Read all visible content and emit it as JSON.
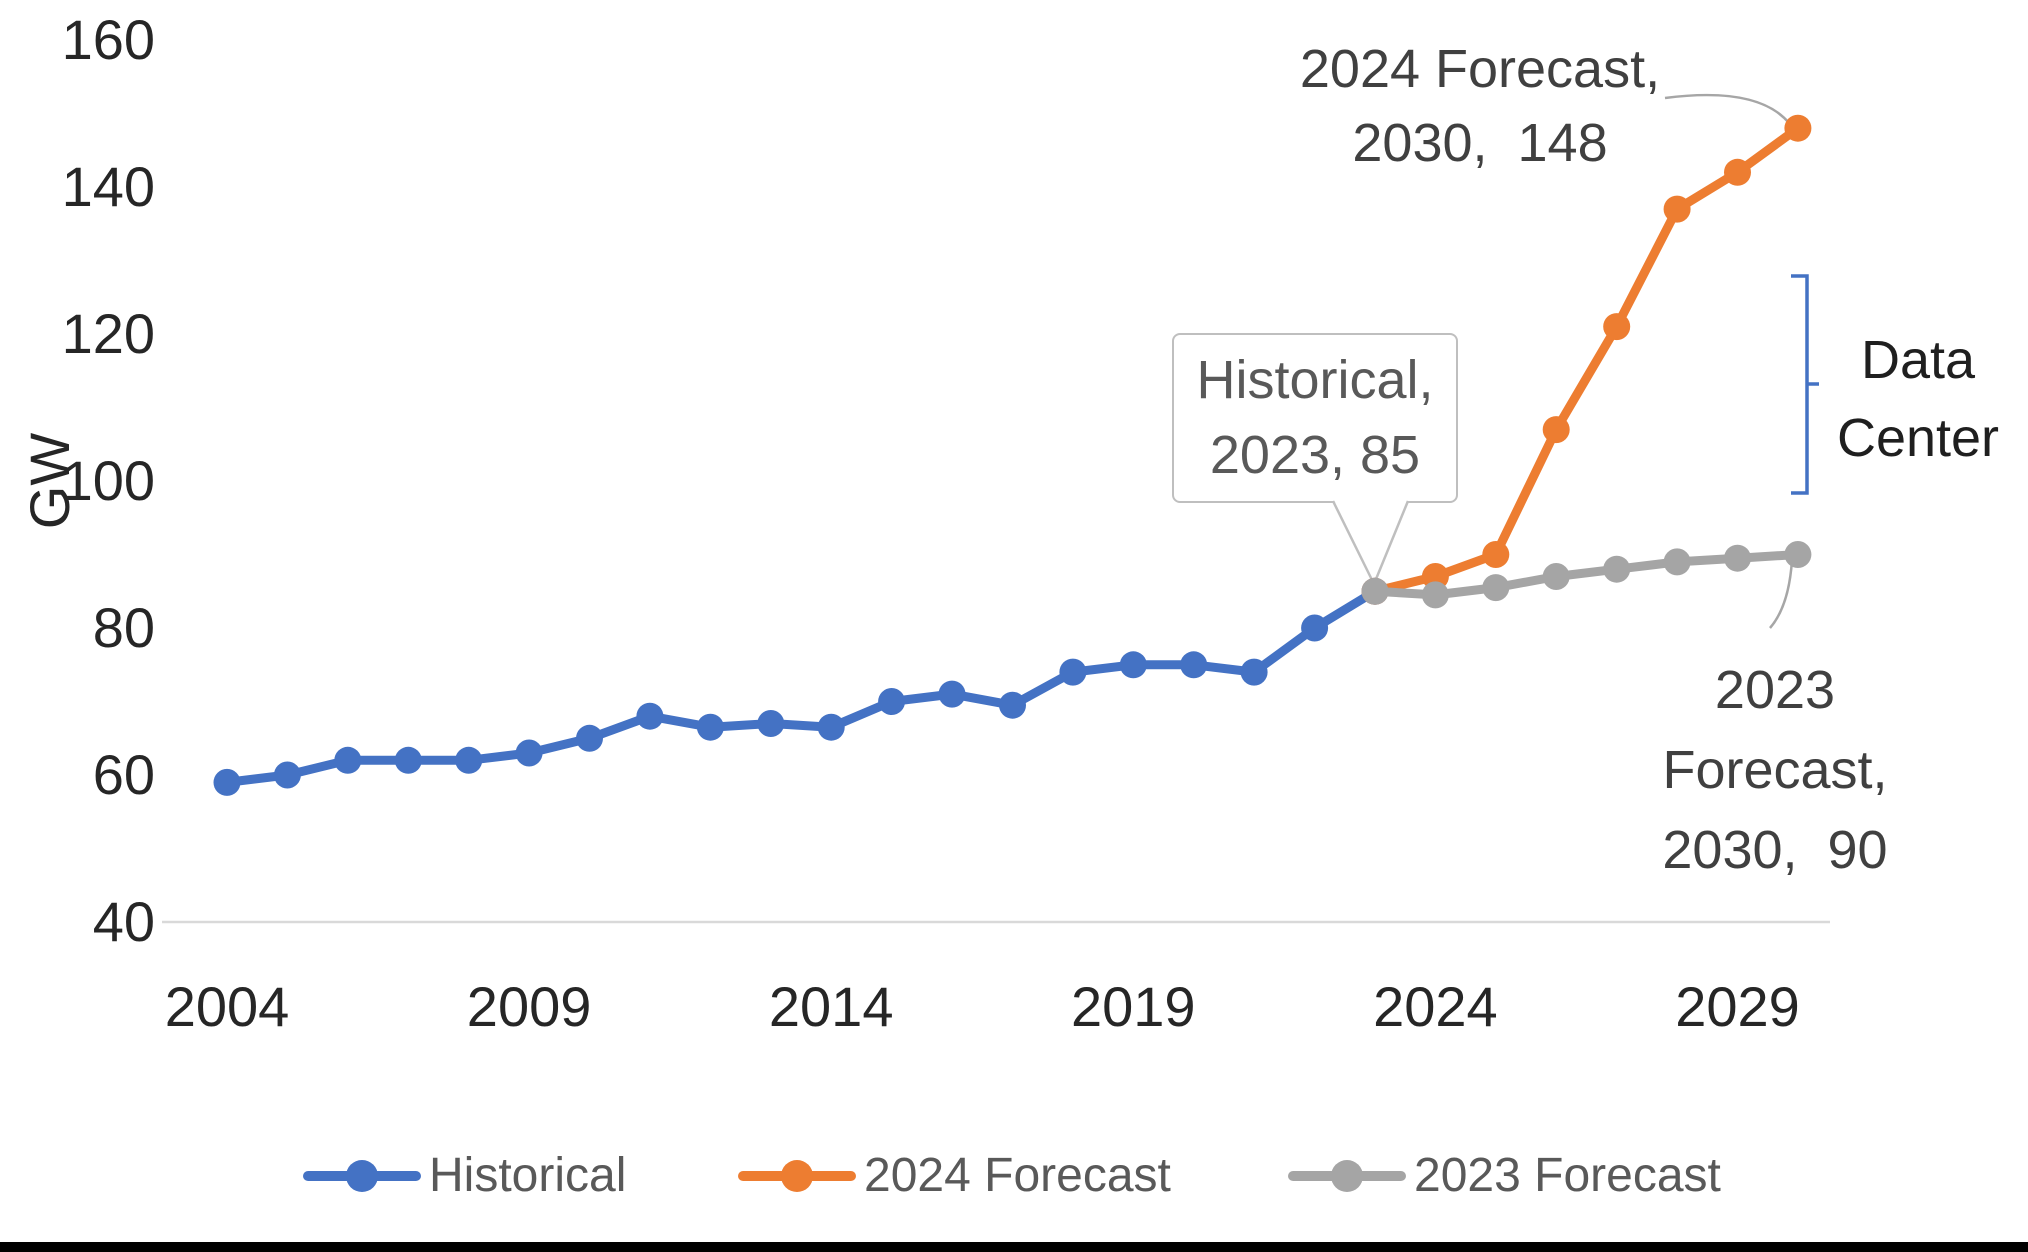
{
  "chart_data": {
    "type": "line",
    "title": "",
    "xlabel": "",
    "ylabel": "GW",
    "ylim": [
      40,
      160
    ],
    "xlim": [
      2004,
      2030
    ],
    "yticks": [
      160,
      140,
      120,
      100,
      80,
      60,
      40
    ],
    "xticks": [
      2004,
      2009,
      2014,
      2019,
      2024,
      2029
    ],
    "grid": "baseline-only",
    "legend_position": "bottom",
    "series": [
      {
        "key": "historical",
        "name": "Historical",
        "color": "#4472C4",
        "x": [
          2004,
          2005,
          2006,
          2007,
          2008,
          2009,
          2010,
          2011,
          2012,
          2013,
          2014,
          2015,
          2016,
          2017,
          2018,
          2019,
          2020,
          2021,
          2022,
          2023
        ],
        "values": [
          59,
          60,
          62,
          62,
          62,
          63,
          65,
          68,
          66.5,
          67,
          66.5,
          70,
          71,
          69.5,
          74,
          75,
          75,
          74,
          80,
          85
        ]
      },
      {
        "key": "forecast-2024",
        "name": "2024 Forecast",
        "color": "#ED7D31",
        "x": [
          2023,
          2024,
          2025,
          2026,
          2027,
          2028,
          2029,
          2030
        ],
        "values": [
          85,
          87,
          90,
          107,
          121,
          137,
          142,
          148
        ]
      },
      {
        "key": "forecast-2023",
        "name": "2023 Forecast",
        "color": "#A5A5A5",
        "x": [
          2023,
          2024,
          2025,
          2026,
          2027,
          2028,
          2029,
          2030
        ],
        "values": [
          85,
          84.5,
          85.5,
          87,
          88,
          89,
          89.5,
          90
        ]
      }
    ],
    "annotations": [
      {
        "id": "forecast-2024-endpoint",
        "text": "2024 Forecast,\n2030,  148",
        "x": 2030,
        "y": 148
      },
      {
        "id": "historical-endpoint",
        "text": "Historical,\n2023, 85",
        "x": 2023,
        "y": 85,
        "style": "callout-box"
      },
      {
        "id": "forecast-2023-endpoint",
        "text": "2023\nForecast,\n2030,  90",
        "x": 2030,
        "y": 90
      },
      {
        "id": "data-center-brace",
        "text": "Data\nCenter",
        "style": "brace-label"
      }
    ]
  },
  "legend": {
    "items": [
      {
        "label": "Historical"
      },
      {
        "label": "2024 Forecast"
      },
      {
        "label": "2023 Forecast"
      }
    ]
  },
  "ui": {
    "axis_color": "#D9D9D9",
    "tick_color": "#262626",
    "annotation_color": "#404040",
    "callout_border_color": "#BFBFBF",
    "callout_text_color": "#595959",
    "leader_color": "#A6A6A6",
    "brace_color": "#4472C4",
    "legend_text_color": "#595959",
    "footer_bar_color": "#000000"
  }
}
